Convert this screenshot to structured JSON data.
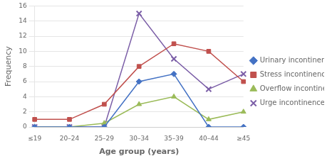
{
  "chart_data": {
    "type": "line",
    "categories": [
      "≤19",
      "20–24",
      "25–29",
      "30–34",
      "35–39",
      "40–44",
      "≥45"
    ],
    "series": [
      {
        "name": "Urinary incontinence",
        "color": "#4472C4",
        "marker": "diamond",
        "values": [
          0,
          0,
          0,
          6,
          7,
          0,
          0
        ]
      },
      {
        "name": "Stress incontinence",
        "color": "#C0504D",
        "marker": "square",
        "values": [
          1,
          1,
          3,
          8,
          11,
          10,
          6
        ]
      },
      {
        "name": "Overflow incontinence",
        "color": "#9BBB59",
        "marker": "triangle",
        "values": [
          0,
          0,
          0.5,
          3,
          4,
          1,
          2
        ]
      },
      {
        "name": "Urge incontinence",
        "color": "#7B5EA7",
        "marker": "x",
        "values": [
          0,
          0,
          0,
          15,
          9,
          5,
          7
        ]
      }
    ],
    "ylabel": "Frequency",
    "xlabel": "Age group (years)",
    "ylim": [
      0,
      16
    ],
    "yticks": [
      0,
      2,
      4,
      6,
      8,
      10,
      12,
      14,
      16
    ],
    "grid": "y",
    "legend": "right"
  }
}
